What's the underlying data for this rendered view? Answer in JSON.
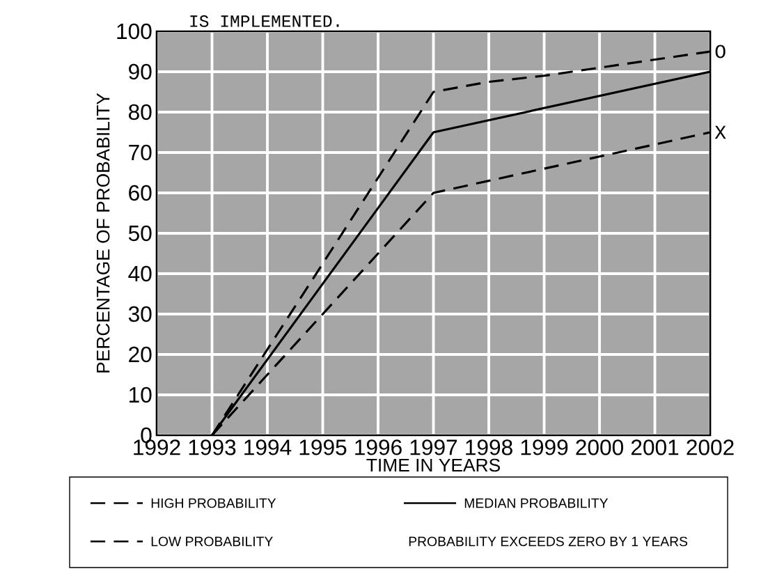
{
  "chart_data": {
    "type": "line",
    "title": "IS IMPLEMENTED.",
    "xlabel": "TIME IN YEARS",
    "ylabel": "PERCENTAGE OF PROBABILITY",
    "xlim": [
      1992,
      2002
    ],
    "ylim": [
      0,
      100
    ],
    "xticks": [
      1992,
      1993,
      1994,
      1995,
      1996,
      1997,
      1998,
      1999,
      2000,
      2001,
      2002
    ],
    "yticks": [
      0,
      10,
      20,
      30,
      40,
      50,
      60,
      70,
      80,
      90,
      100
    ],
    "grid": true,
    "legend": "bottom",
    "series": [
      {
        "name": "HIGH PROBABILITY",
        "color": "#000000",
        "line_style": "dashed",
        "x": [
          1993,
          1997,
          1998,
          1999,
          2000,
          2001,
          2002
        ],
        "values": [
          0,
          85,
          87.5,
          89,
          91,
          93,
          95
        ]
      },
      {
        "name": "MEDIAN PROBABILITY",
        "color": "#000000",
        "line_style": "solid",
        "x": [
          1993,
          1997,
          2002
        ],
        "values": [
          0,
          75,
          90
        ]
      },
      {
        "name": "LOW PROBABILITY",
        "color": "#000000",
        "line_style": "dashed",
        "x": [
          1993,
          1997,
          1998,
          1999,
          2000,
          2001,
          2002
        ],
        "values": [
          0,
          60,
          63,
          66,
          69,
          72,
          75
        ]
      }
    ],
    "annotations": [
      {
        "text": "O",
        "x": 2002,
        "y": 95
      },
      {
        "text": "X",
        "x": 2002,
        "y": 75
      },
      "PROBABILITY EXCEEDS ZERO BY 1 YEARS"
    ]
  }
}
